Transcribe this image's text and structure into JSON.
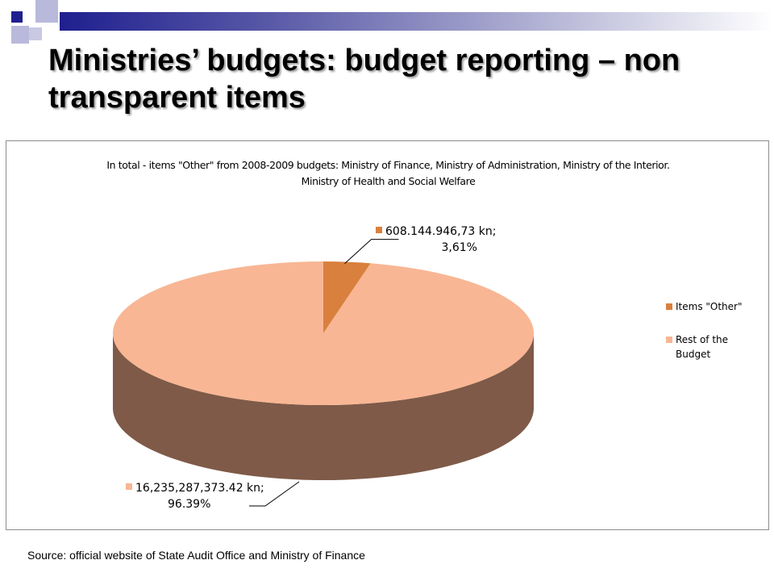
{
  "slide": {
    "title": "Ministries’ budgets: budget reporting – non transparent items",
    "source": "Source: official website of State Audit Office and Ministry of Finance",
    "colors": {
      "strip_dark": "#1f1f8f",
      "deco_navy": "#1f1f8f",
      "deco_light": "#a9a9d6"
    }
  },
  "chart_data": {
    "type": "pie",
    "title_line1": "In total - items \"Other\" from 2008-2009 budgets: Ministry of Finance, Ministry of Administration, Ministry of the Interior.",
    "title_line2": "Ministry of Health and Social Welfare",
    "slices": [
      {
        "name": "Items \"Other\"",
        "value": 608144946.73,
        "percent": 3.61,
        "label_line1": "608.144.946,73 kn;",
        "label_line2": "3,61%",
        "color": "#d9803e"
      },
      {
        "name": "Rest of the Budget",
        "value": 16235287373.42,
        "percent": 96.39,
        "label_line1": "16,235,287,373.42 kn;",
        "label_line2": "96.39%",
        "color": "#f8b694"
      }
    ],
    "side_color": "#7f5a48",
    "legend_position": "right"
  }
}
